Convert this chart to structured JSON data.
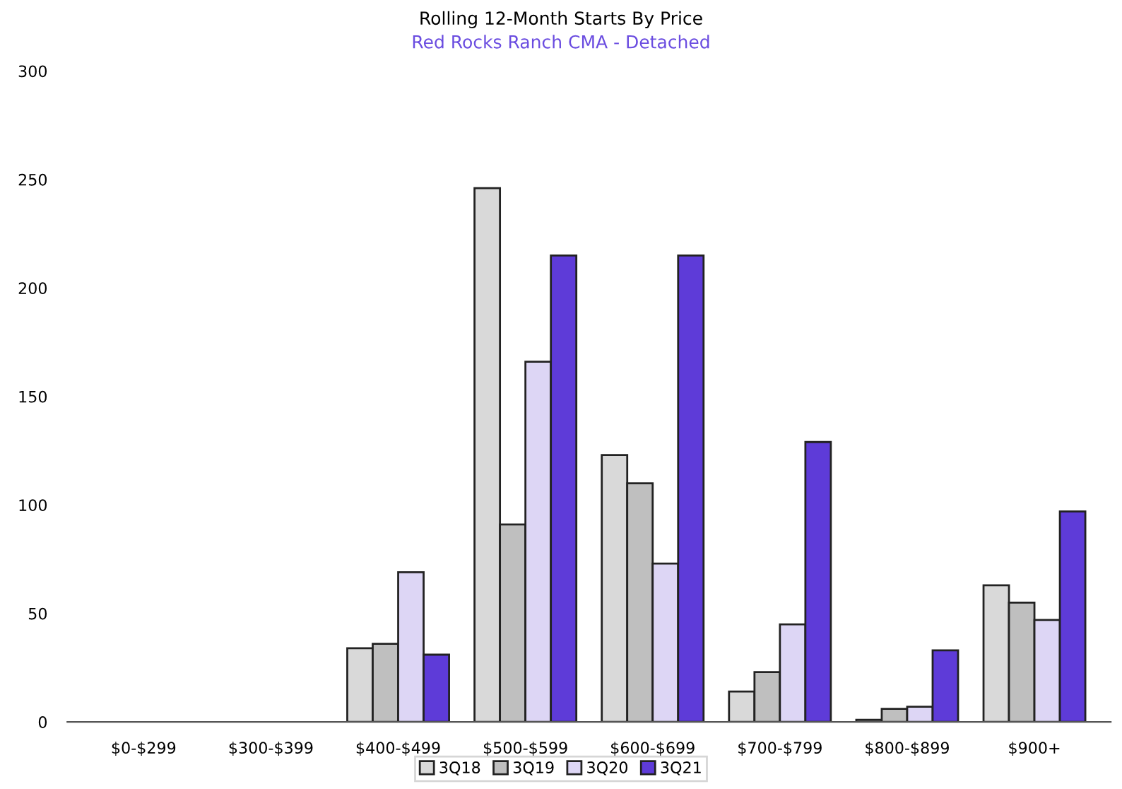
{
  "chart_data": {
    "type": "bar",
    "title": "Rolling 12-Month Starts By Price",
    "subtitle": "Red Rocks Ranch CMA - Detached",
    "categories": [
      "$0-$299",
      "$300-$399",
      "$400-$499",
      "$500-$599",
      "$600-$699",
      "$700-$799",
      "$800-$899",
      "$900+"
    ],
    "series": [
      {
        "name": "3Q18",
        "color": "#d9d9d9",
        "values": [
          0,
          0,
          34,
          246,
          123,
          14,
          1,
          63
        ]
      },
      {
        "name": "3Q19",
        "color": "#bfbfbf",
        "values": [
          0,
          0,
          36,
          91,
          110,
          23,
          6,
          55
        ]
      },
      {
        "name": "3Q20",
        "color": "#ddd6f5",
        "values": [
          0,
          0,
          69,
          166,
          73,
          45,
          7,
          47
        ]
      },
      {
        "name": "3Q21",
        "color": "#5e3bd8",
        "values": [
          0,
          0,
          31,
          215,
          215,
          129,
          33,
          97
        ]
      }
    ],
    "ylim": [
      0,
      300
    ],
    "yticks": [
      0,
      50,
      100,
      150,
      200,
      250,
      300
    ],
    "grid": false,
    "legend": "bottom"
  }
}
